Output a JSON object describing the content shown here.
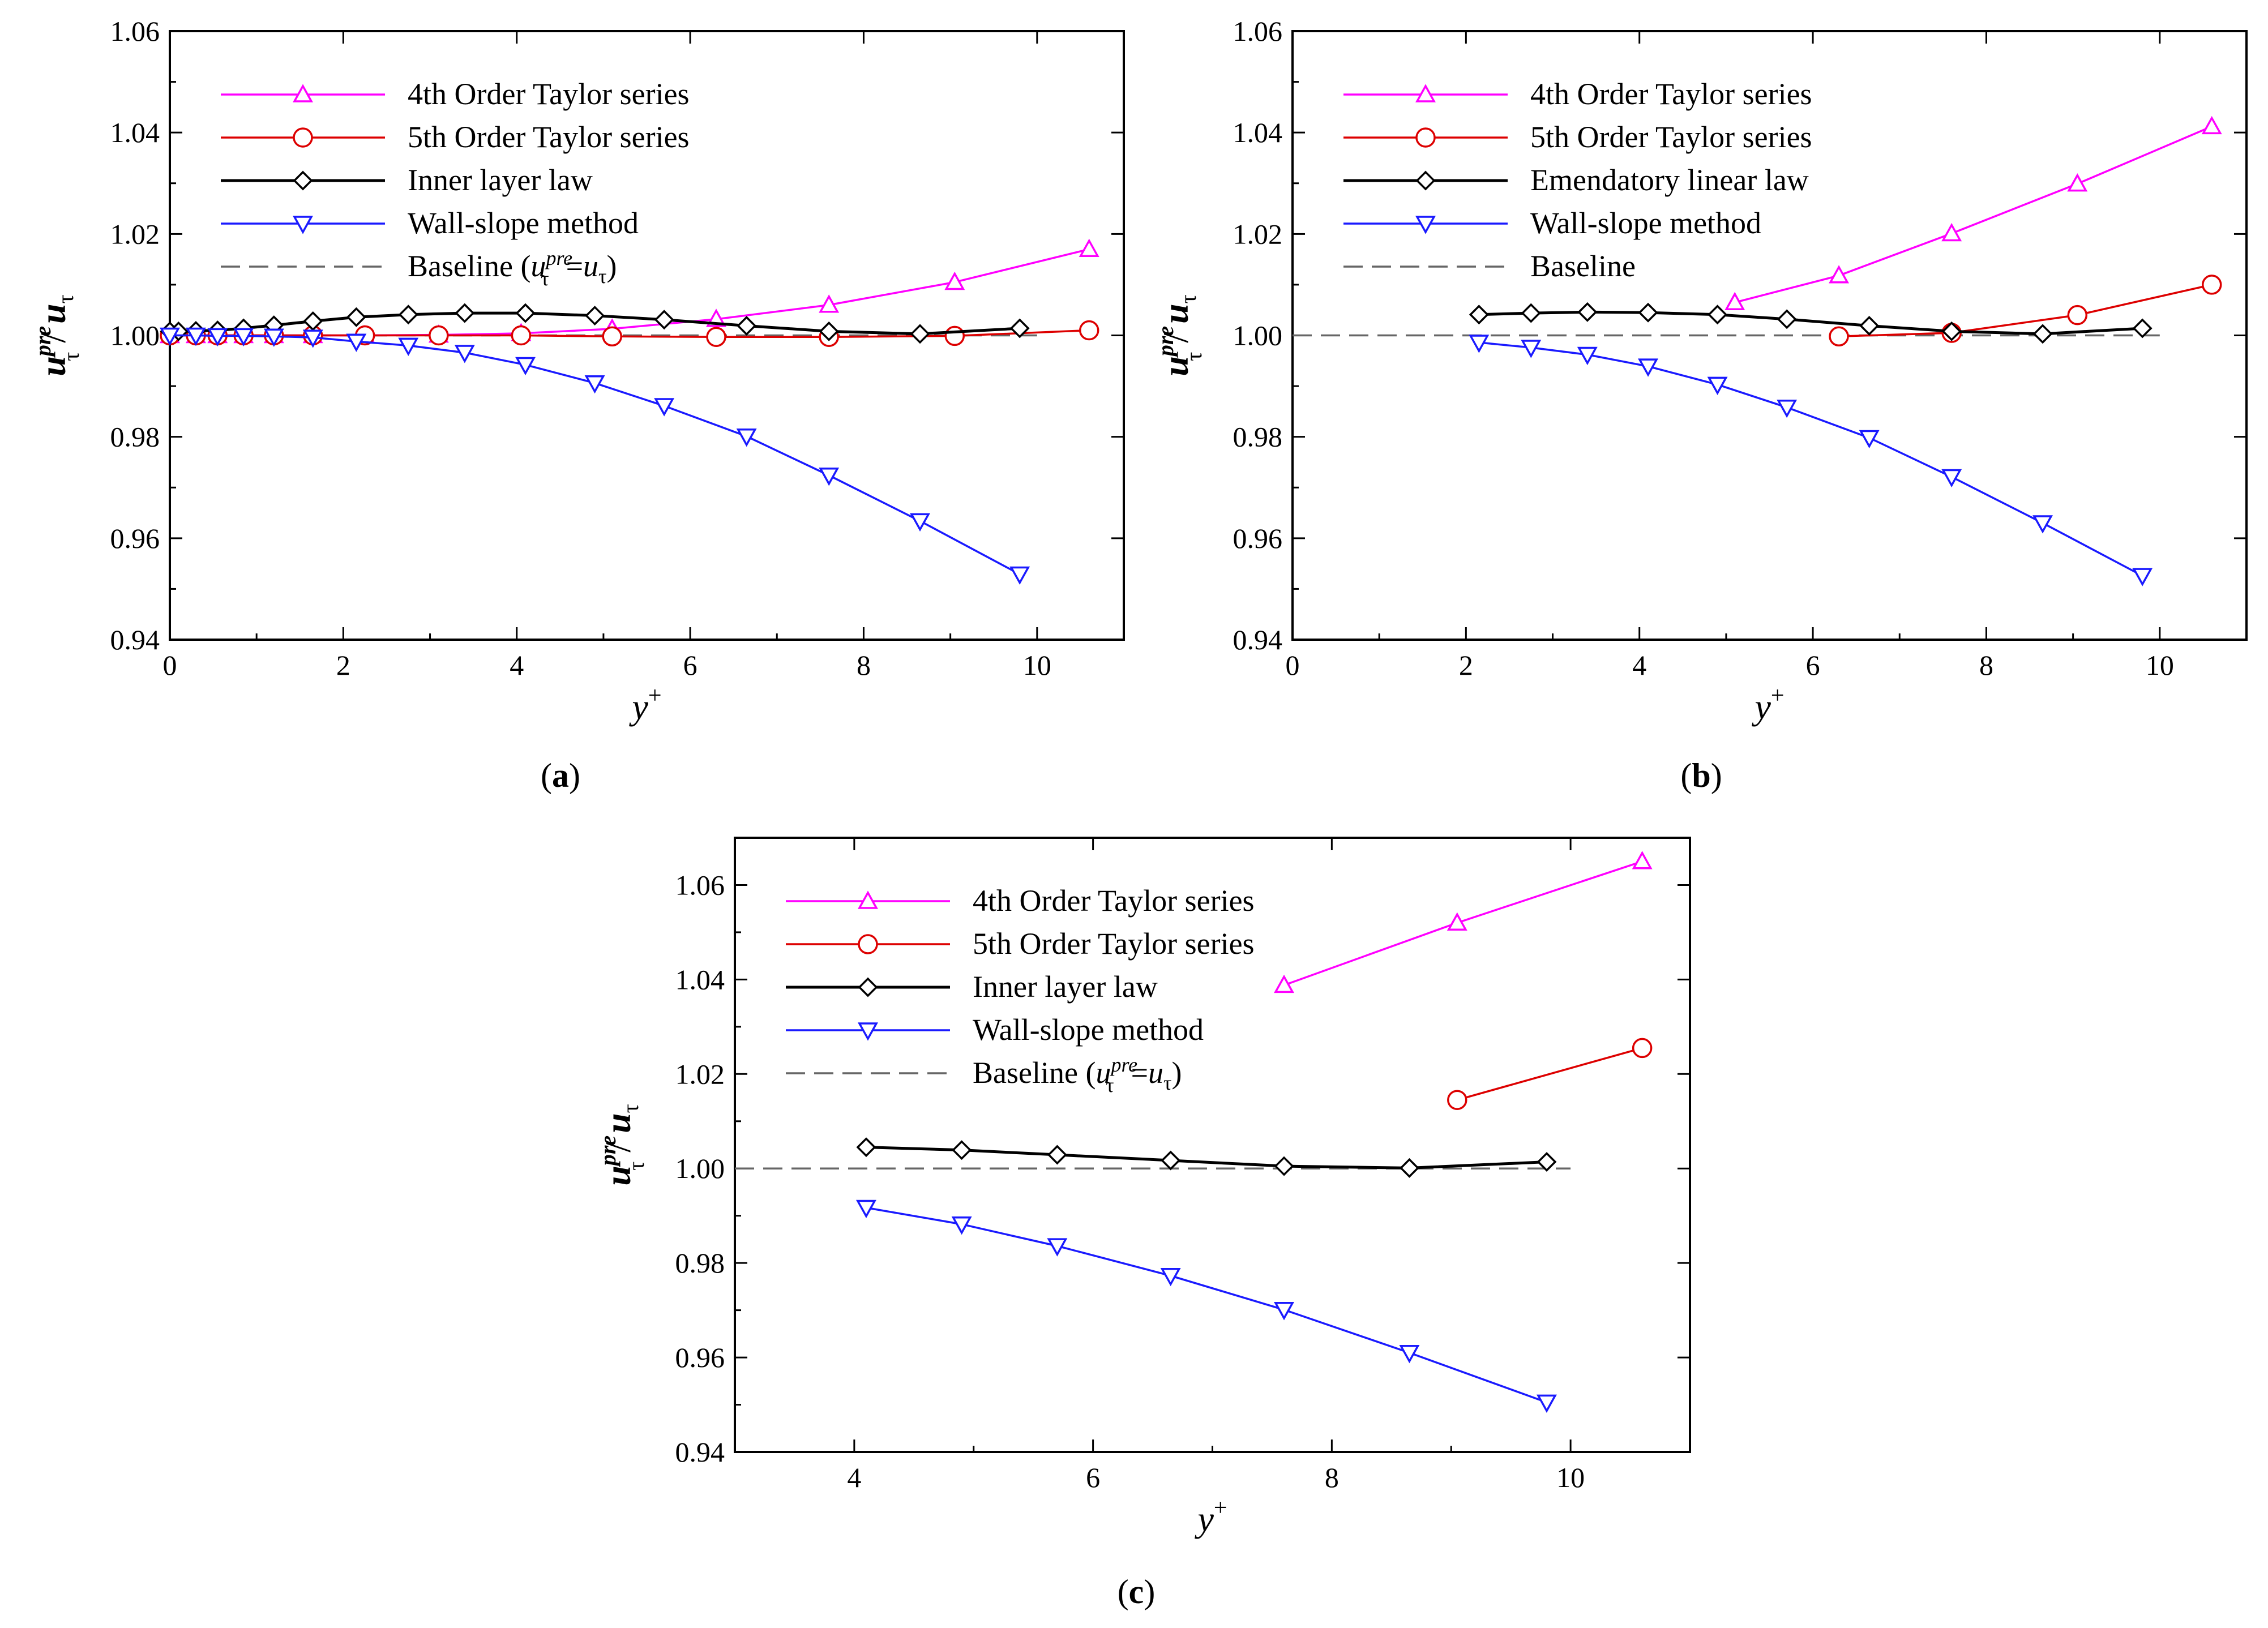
{
  "colors": {
    "magenta": "#ff00ff",
    "red": "#dd0000",
    "black": "#000000",
    "blue": "#1a1aff",
    "baseline": "#666666"
  },
  "chart_data": [
    {
      "panel": "a",
      "panel_label": "(a)",
      "type": "line",
      "xlabel": "y+",
      "ylabel": "u_τ^pre / u_τ",
      "xlim": [
        0,
        11
      ],
      "ylim": [
        0.94,
        1.06
      ],
      "xticks": [
        0,
        2,
        4,
        6,
        8,
        10
      ],
      "yticks": [
        0.94,
        0.96,
        0.98,
        1.0,
        1.02,
        1.04,
        1.06
      ],
      "xtick_labels": [
        "0",
        "2",
        "4",
        "6",
        "8",
        "10"
      ],
      "ytick_labels": [
        "0.94",
        "0.96",
        "0.98",
        "1.00",
        "1.02",
        "1.04",
        "1.06"
      ],
      "legend_position": "top-left",
      "series": [
        {
          "name": "4th Order Taylor series",
          "marker": "triangle-up",
          "color": "magenta",
          "x": [
            0,
            0.3,
            0.55,
            0.85,
            1.2,
            1.65,
            2.25,
            3.1,
            4.05,
            5.1,
            6.3,
            7.6,
            9.05,
            10.6
          ],
          "y": [
            1.0,
            1.0,
            1.0,
            1.0,
            1.0,
            1.0,
            1.0,
            1.0001,
            1.0004,
            1.0013,
            1.0032,
            1.006,
            1.0105,
            1.017
          ]
        },
        {
          "name": "5th Order Taylor series",
          "marker": "circle",
          "color": "red",
          "x": [
            0,
            0.3,
            0.55,
            0.85,
            1.2,
            1.65,
            2.25,
            3.1,
            4.05,
            5.1,
            6.3,
            7.6,
            9.05,
            10.6
          ],
          "y": [
            1.0,
            1.0,
            1.0,
            1.0,
            1.0,
            1.0,
            1.0,
            1.0,
            1.0,
            0.9998,
            0.9997,
            0.9997,
            0.9999,
            1.001
          ]
        },
        {
          "name": "Inner layer law",
          "marker": "diamond",
          "color": "black",
          "x": [
            0,
            0.1,
            0.3,
            0.55,
            0.85,
            1.2,
            1.65,
            2.15,
            2.75,
            3.4,
            4.1,
            4.9,
            5.7,
            6.65,
            7.6,
            8.65,
            9.8
          ],
          "y": [
            1.0008,
            1.0008,
            1.0009,
            1.001,
            1.0014,
            1.002,
            1.0028,
            1.0036,
            1.0041,
            1.0044,
            1.0044,
            1.0039,
            1.0031,
            1.0019,
            1.0008,
            1.0003,
            1.0014
          ]
        },
        {
          "name": "Wall-slope method",
          "marker": "triangle-down",
          "color": "blue",
          "x": [
            0,
            0.3,
            0.55,
            0.85,
            1.2,
            1.65,
            2.15,
            2.75,
            3.4,
            4.1,
            4.9,
            5.7,
            6.65,
            7.6,
            8.65,
            9.8
          ],
          "y": [
            1.0,
            1.0,
            0.9999,
            0.9999,
            0.9998,
            0.9996,
            0.9988,
            0.998,
            0.9966,
            0.9942,
            0.9906,
            0.9861,
            0.9801,
            0.9724,
            0.9634,
            0.9529
          ]
        },
        {
          "name": "Baseline (u_τ^pre=u_τ)",
          "marker": "none",
          "color": "baseline",
          "dashed": true,
          "x": [
            0,
            10
          ],
          "y": [
            1.0,
            1.0
          ]
        }
      ]
    },
    {
      "panel": "b",
      "panel_label": "(b)",
      "type": "line",
      "xlabel": "y+",
      "ylabel": "u_τ^pre / u_τ",
      "xlim": [
        0,
        11
      ],
      "ylim": [
        0.94,
        1.06
      ],
      "xticks": [
        0,
        2,
        4,
        6,
        8,
        10
      ],
      "yticks": [
        0.94,
        0.96,
        0.98,
        1.0,
        1.02,
        1.04,
        1.06
      ],
      "xtick_labels": [
        "0",
        "2",
        "4",
        "6",
        "8",
        "10"
      ],
      "ytick_labels": [
        "0.94",
        "0.96",
        "0.98",
        "1.00",
        "1.02",
        "1.04",
        "1.06"
      ],
      "legend_position": "top-left",
      "series": [
        {
          "name": "4th Order Taylor series",
          "marker": "triangle-up",
          "color": "magenta",
          "x": [
            5.1,
            6.3,
            7.6,
            9.05,
            10.6
          ],
          "y": [
            1.0065,
            1.0118,
            1.0201,
            1.0299,
            1.0412
          ]
        },
        {
          "name": "5th Order Taylor series",
          "marker": "circle",
          "color": "red",
          "x": [
            6.3,
            7.6,
            9.05,
            10.6
          ],
          "y": [
            0.9998,
            1.0005,
            1.004,
            1.01
          ]
        },
        {
          "name": "Emendatory linear law",
          "marker": "diamond",
          "color": "black",
          "x": [
            2.15,
            2.75,
            3.4,
            4.1,
            4.9,
            5.7,
            6.65,
            7.6,
            8.65,
            9.8
          ],
          "y": [
            1.0041,
            1.0044,
            1.0046,
            1.0045,
            1.0041,
            1.0032,
            1.0019,
            1.0008,
            1.0003,
            1.0014
          ]
        },
        {
          "name": "Wall-slope method",
          "marker": "triangle-down",
          "color": "blue",
          "x": [
            2.15,
            2.75,
            3.4,
            4.1,
            4.9,
            5.7,
            6.65,
            7.6,
            8.65,
            9.8
          ],
          "y": [
            0.9986,
            0.9976,
            0.9962,
            0.9939,
            0.9903,
            0.9858,
            0.9798,
            0.9721,
            0.963,
            0.9526
          ]
        },
        {
          "name": "Baseline",
          "marker": "none",
          "color": "baseline",
          "dashed": true,
          "x": [
            0,
            10
          ],
          "y": [
            1.0,
            1.0
          ]
        }
      ]
    },
    {
      "panel": "c",
      "panel_label": "(c)",
      "type": "line",
      "xlabel": "y+",
      "ylabel": "u_τ^pre / u_τ",
      "xlim": [
        3,
        11
      ],
      "ylim": [
        0.94,
        1.07
      ],
      "xticks": [
        4,
        6,
        8,
        10
      ],
      "yticks": [
        0.94,
        0.96,
        0.98,
        1.0,
        1.02,
        1.04,
        1.06
      ],
      "xtick_labels": [
        "4",
        "6",
        "8",
        "10"
      ],
      "ytick_labels": [
        "0.94",
        "0.96",
        "0.98",
        "1.00",
        "1.02",
        "1.04",
        "1.06"
      ],
      "legend_position": "top-left",
      "series": [
        {
          "name": "4th Order Taylor series",
          "marker": "triangle-up",
          "color": "magenta",
          "x": [
            7.6,
            9.05,
            10.6
          ],
          "y": [
            1.0388,
            1.052,
            1.065
          ]
        },
        {
          "name": "5th Order Taylor series",
          "marker": "circle",
          "color": "red",
          "x": [
            9.05,
            10.6
          ],
          "y": [
            1.0145,
            1.0255
          ]
        },
        {
          "name": "Inner layer law",
          "marker": "diamond",
          "color": "black",
          "x": [
            4.1,
            4.9,
            5.7,
            6.65,
            7.6,
            8.65,
            9.8
          ],
          "y": [
            1.0045,
            1.0039,
            1.0029,
            1.0017,
            1.0005,
            1.0001,
            1.0014
          ]
        },
        {
          "name": "Wall-slope method",
          "marker": "triangle-down",
          "color": "blue",
          "x": [
            4.1,
            4.9,
            5.7,
            6.65,
            7.6,
            8.65,
            9.8
          ],
          "y": [
            0.9917,
            0.9882,
            0.9836,
            0.9773,
            0.9701,
            0.961,
            0.9505
          ]
        },
        {
          "name": "Baseline (u_τ^pre=u_τ)",
          "marker": "none",
          "color": "baseline",
          "dashed": true,
          "x": [
            3,
            10
          ],
          "y": [
            1.0,
            1.0
          ]
        }
      ]
    }
  ]
}
